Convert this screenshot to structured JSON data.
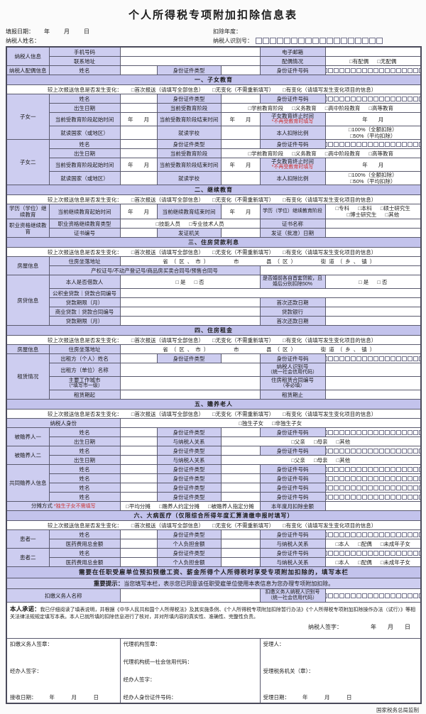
{
  "title": "个人所得税专项附加扣除信息表",
  "footer": "国家税务总局监制",
  "id_box_count": 18,
  "top": {
    "date_label": "填报日期：",
    "date_value": "年　月　日",
    "name_label": "纳税人姓名：",
    "year_label": "扣除年度：",
    "tin_label": "纳税人识别号："
  },
  "a": {
    "g1": "纳税人信息",
    "mobile": "手机号码",
    "email": "电子邮箱",
    "addr": "联系地址",
    "spouse": "配偶情况",
    "spouse_opts": [
      "□有配偶",
      "□无配偶"
    ],
    "g2": "纳税人配偶信息"
  },
  "L": {
    "name": "姓名",
    "id_type": "身份证件类型",
    "id_no": "身份证件号码",
    "birth": "出生日期",
    "change": "较上次报送信息是否发生变化：",
    "chg_opts": [
      "□首次报送（请填写全部信息）",
      "□无变化（不需重新填写）",
      "□有变化（请填写发生变化项目的信息）"
    ],
    "ym": "年　　月",
    "ymd": "年　月　日"
  },
  "s1": {
    "title": "一、子女教育",
    "child1": "子女一",
    "child2": "子女二",
    "stage": "当前受教育阶段",
    "stage_opts": [
      "□学前教育阶段",
      "□义务教育",
      "□高中阶段教育",
      "□高等教育"
    ],
    "start": "当前受教育阶段起始时间",
    "end": "当前受教育阶段结束时间",
    "stop": "子女教育终止时间",
    "stop_note": "*不再受教育时填写",
    "country": "就读国家（或地区）",
    "school": "就读学校",
    "ratio": "本人扣除比例",
    "ratio_opts": [
      "□100%（全额扣除）",
      "□50%（平均扣除）"
    ]
  },
  "s2": {
    "title": "二、继续教育",
    "g1": "学历（学位）继续教育",
    "g2": "职业资格继续教育",
    "start": "当前继续教育起始时间",
    "end": "当前继续教育结束时间",
    "stage": "学历（学位）继续教育阶段",
    "stage_opts": [
      "□专科",
      "□本科",
      "□硕士研究生",
      "□博士研究生",
      "□其他"
    ],
    "type": "职业资格继续教育类型",
    "type_opts": [
      "□技能人员",
      "□专业技术人员"
    ],
    "cert_name": "证书名称",
    "cert_no": "证书编号",
    "issuer": "发证机关",
    "issue_date": "发证（批准）日期"
  },
  "s3": {
    "title": "三、住房贷款利息",
    "g1": "房屋信息",
    "g2": "房贷信息",
    "addr": "住房坐落地址",
    "addr_line": "省（区、市）　　　市　　　县（区）　　　街道（乡、镇）",
    "cert": "产权证号/不动产登记号/商品房买卖合同号/预售合同号",
    "borrower": "本人是否借款人",
    "yn_opts": [
      "□ 是",
      "□ 否"
    ],
    "prenup": "是否婚前各自首套贷款，且婚后分别扣除50%",
    "gjj": "公积金贷款｜贷款合同编号",
    "term": "贷款期限（月）",
    "first_pay": "首次还款日期",
    "sy": "商业贷款｜贷款合同编号",
    "bank": "贷款银行"
  },
  "s4": {
    "title": "四、住房租金",
    "g1": "房屋信息",
    "g2": "租赁情况",
    "addr": "住房坐落地址",
    "addr_line": "省（区、市）　　　市　　　县（区）　　　街道（乡、镇）",
    "lessor_p": "出租方（个人）姓名",
    "lessor_c": "出租方（单位）名称",
    "lessor_tin": "纳税人识别号",
    "lessor_tin2": "（统一社会信用代码）",
    "city": "主要工作城市",
    "city2": "（*填写市一级）",
    "contract": "住房租赁合同编号",
    "contract2": "（非必填）",
    "start": "租赁期起",
    "end": "租赁期止"
  },
  "s5": {
    "title": "五、赡养老人",
    "identity": "纳税人身份",
    "identity_opts": [
      "□独生子女",
      "□非独生子女"
    ],
    "dep1": "被赡养人一",
    "dep2": "被赡养人二",
    "rel": "与纳税人关系",
    "rel_opts": [
      "□父亲",
      "□母亲",
      "□其他"
    ],
    "cograss": "共同赡养人信息",
    "share": "分摊方式",
    "share_note": "*独生子女不需填写",
    "share_opts": [
      "□平均分摊",
      "□赡养人约定分摊",
      "□被赡养人指定分摊"
    ],
    "monthly": "本年度月扣除金额"
  },
  "s6": {
    "title": "六、大病医疗（仅限综合所得年度汇算清缴申报时填写）",
    "p1": "患者一",
    "p2": "患者二",
    "total": "医药费用总金额",
    "self_pay": "个人负担金额",
    "rel": "与纳税人关系",
    "rel_opts": [
      "□本人",
      "□配偶",
      "□未成年子女"
    ]
  },
  "emp": {
    "bar1": "需要在任职受雇单位预扣预缴工资、薪金所得个人所得税时享受专项附加扣除的，填写本栏",
    "tip_label": "重要提示：",
    "tip_text": "当您填写本栏，表示您已同意该任职受雇单位使用本表信息为您办理专项附加扣除。",
    "name": "扣缴义务人名称",
    "tin1": "扣缴义务人纳税人识别号",
    "tin2": "（统一社会信用代码）"
  },
  "pledge": {
    "label": "本人承诺：",
    "text": "我已仔细阅读了填表说明，并根据《中华人民共和国个人所得税法》及其实施条例、《个人所得税专项附加扣除暂行办法》《个人所得税专项附加扣除操作办法（试行）》等相关法律法规规定填写本表。本人已就所填的扣除信息进行了核对，并对所填内容的真实性、准确性、完整性负责。",
    "sign": "纳税人签字：",
    "date": "年　　月　　日"
  },
  "sig": {
    "c1a": "扣缴义务人签章：",
    "c1b": "经办人签字：",
    "c1c": "接收日期：",
    "c2a": "代理机构签章：",
    "c2b": "代理机构统一社会信用代码：",
    "c2c": "经办人签字：",
    "c2d": "经办人身份证件号码：",
    "c3a": "受理人：",
    "c3b": "受理税务机关（章）：",
    "c3c": "受理日期："
  }
}
